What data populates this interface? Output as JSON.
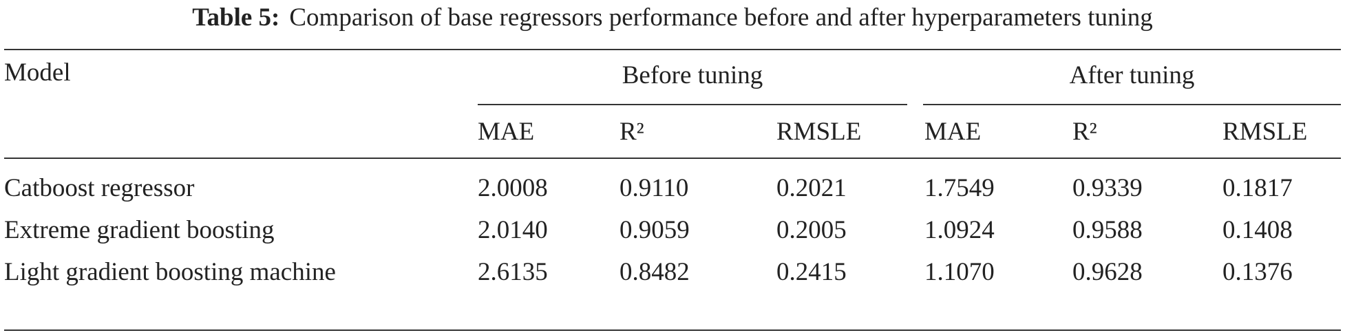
{
  "table": {
    "caption_label": "Table 5:",
    "caption": "Comparison of base regressors performance before and after hyperparameters tuning",
    "model_header": "Model",
    "groups": [
      "Before tuning",
      "After tuning"
    ],
    "subheaders": [
      "MAE",
      "R²",
      "RMSLE",
      "MAE",
      "R²",
      "RMSLE"
    ],
    "rows": [
      [
        "Catboost regressor",
        "2.0008",
        "0.9110",
        "0.2021",
        "1.7549",
        "0.9339",
        "0.1817"
      ],
      [
        "Extreme gradient boosting",
        "2.0140",
        "0.9059",
        "0.2005",
        "1.0924",
        "0.9588",
        "0.1408"
      ],
      [
        "Light gradient boosting machine",
        "2.6135",
        "0.8482",
        "0.2415",
        "1.1070",
        "0.9628",
        "0.1376"
      ]
    ]
  }
}
